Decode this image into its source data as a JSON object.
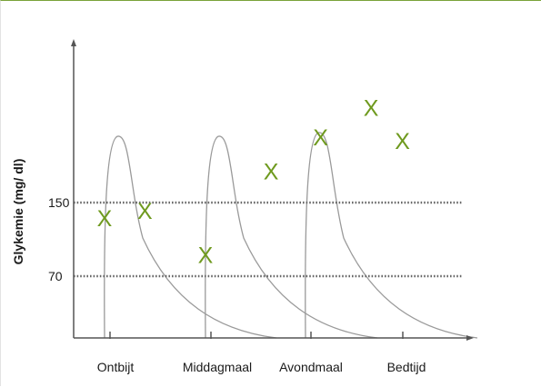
{
  "chart_data": {
    "type": "scatter",
    "title": "",
    "xlabel": "",
    "ylabel": "Glykemie (mg/ dl)",
    "categories": [
      "Ontbijt",
      "Middagmaal",
      "Avondmaal",
      "Bedtijd"
    ],
    "y_ticks": [
      70,
      150
    ],
    "reference_lines": [
      70,
      150
    ],
    "ylim": [
      0,
      290
    ],
    "grid": false,
    "colors": {
      "marker": "#6f9a1f",
      "curve": "#9a9a9a",
      "axis": "#555555",
      "reference_line": "#666666",
      "border_top": "#7aa33a"
    },
    "marker_symbol": "X",
    "series": [
      {
        "points": [
          {
            "x": 0.0,
            "y": 133
          },
          {
            "x": 0.4,
            "y": 141
          },
          {
            "x": 1.0,
            "y": 93
          },
          {
            "x": 1.65,
            "y": 184
          },
          {
            "x": 2.15,
            "y": 221
          },
          {
            "x": 2.65,
            "y": 253
          },
          {
            "x": 3.05,
            "y": 217
          }
        ]
      }
    ],
    "insulin_curves": [
      {
        "meal": "Ontbijt",
        "peak": 222
      },
      {
        "meal": "Middagmaal",
        "peak": 222
      },
      {
        "meal": "Avondmaal",
        "peak": 226
      }
    ]
  }
}
